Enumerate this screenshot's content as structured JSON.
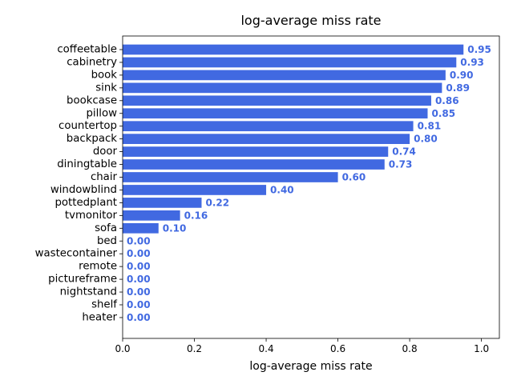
{
  "chart_data": {
    "type": "bar",
    "orientation": "horizontal",
    "title": "log-average miss rate",
    "xlabel": "log-average miss rate",
    "ylabel": "",
    "xlim": [
      0,
      1.05
    ],
    "xticks": [
      "0.0",
      "0.2",
      "0.4",
      "0.6",
      "0.8",
      "1.0"
    ],
    "grid": false,
    "legend": "none",
    "bar_color": "#4169e1",
    "label_color": "#4169e1",
    "categories": [
      "coffeetable",
      "cabinetry",
      "book",
      "sink",
      "bookcase",
      "pillow",
      "countertop",
      "backpack",
      "door",
      "diningtable",
      "chair",
      "windowblind",
      "pottedplant",
      "tvmonitor",
      "sofa",
      "bed",
      "wastecontainer",
      "remote",
      "pictureframe",
      "nightstand",
      "shelf",
      "heater"
    ],
    "values": [
      0.95,
      0.93,
      0.9,
      0.89,
      0.86,
      0.85,
      0.81,
      0.8,
      0.74,
      0.73,
      0.6,
      0.4,
      0.22,
      0.16,
      0.1,
      0.0,
      0.0,
      0.0,
      0.0,
      0.0,
      0.0,
      0.0
    ],
    "value_labels": [
      "0.95",
      "0.93",
      "0.90",
      "0.89",
      "0.86",
      "0.85",
      "0.81",
      "0.80",
      "0.74",
      "0.73",
      "0.60",
      "0.40",
      "0.22",
      "0.16",
      "0.10",
      "0.00",
      "0.00",
      "0.00",
      "0.00",
      "0.00",
      "0.00",
      "0.00"
    ]
  }
}
